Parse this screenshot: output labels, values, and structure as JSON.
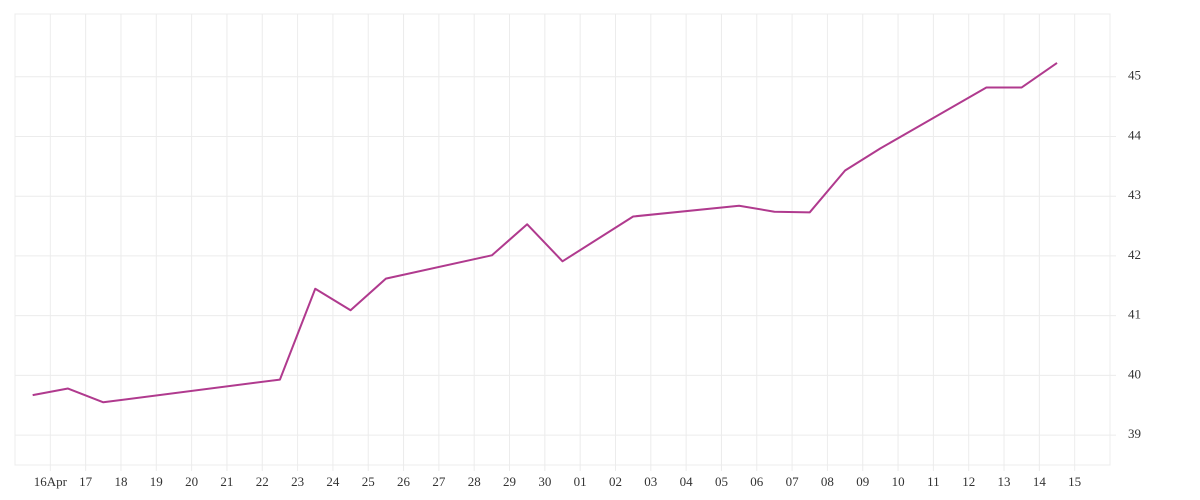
{
  "chart_data": {
    "type": "line",
    "x": [
      -0.5,
      0.5,
      1.5,
      6.5,
      7.5,
      8.5,
      9.5,
      12.5,
      13.5,
      14.5,
      16.5,
      19.5,
      20.5,
      21.5,
      22.5,
      23.5,
      26.5,
      27.5,
      28.5
    ],
    "series": [
      {
        "color": "#b03a8e",
        "values": [
          39.67,
          39.78,
          39.55,
          39.93,
          41.45,
          41.09,
          41.62,
          42.01,
          42.53,
          41.91,
          42.66,
          42.84,
          42.74,
          42.73,
          43.43,
          43.8,
          44.82,
          44.82,
          45.23
        ]
      }
    ],
    "xlim": [
      -1,
      30
    ],
    "xticks": [
      {
        "value": 0,
        "label": "16Apr"
      },
      {
        "value": 1,
        "label": "17"
      },
      {
        "value": 2,
        "label": "18"
      },
      {
        "value": 3,
        "label": "19"
      },
      {
        "value": 4,
        "label": "20"
      },
      {
        "value": 5,
        "label": "21"
      },
      {
        "value": 6,
        "label": "22"
      },
      {
        "value": 7,
        "label": "23"
      },
      {
        "value": 8,
        "label": "24"
      },
      {
        "value": 9,
        "label": "25"
      },
      {
        "value": 10,
        "label": "26"
      },
      {
        "value": 11,
        "label": "27"
      },
      {
        "value": 12,
        "label": "28"
      },
      {
        "value": 13,
        "label": "29"
      },
      {
        "value": 14,
        "label": "30"
      },
      {
        "value": 15,
        "label": "01"
      },
      {
        "value": 16,
        "label": "02"
      },
      {
        "value": 17,
        "label": "03"
      },
      {
        "value": 18,
        "label": "04"
      },
      {
        "value": 19,
        "label": "05"
      },
      {
        "value": 20,
        "label": "06"
      },
      {
        "value": 21,
        "label": "07"
      },
      {
        "value": 22,
        "label": "08"
      },
      {
        "value": 23,
        "label": "09"
      },
      {
        "value": 24,
        "label": "10"
      },
      {
        "value": 25,
        "label": "11"
      },
      {
        "value": 26,
        "label": "12"
      },
      {
        "value": 27,
        "label": "13"
      },
      {
        "value": 28,
        "label": "14"
      },
      {
        "value": 29,
        "label": "15"
      }
    ],
    "ylim": [
      38.5,
      46.05
    ],
    "yticks": [
      39,
      40,
      41,
      42,
      43,
      44,
      45
    ],
    "grid": true
  }
}
